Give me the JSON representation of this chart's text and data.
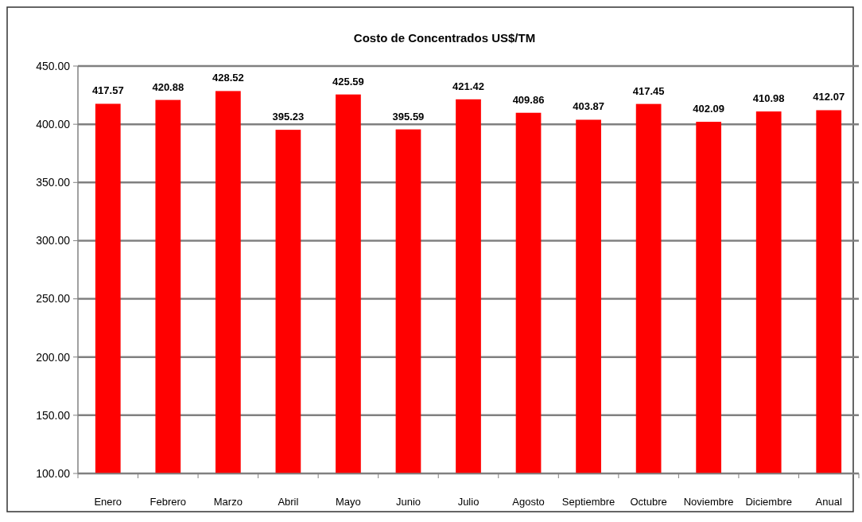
{
  "chart_data": {
    "type": "bar",
    "title": "Costo de Concentrados US$/TM",
    "categories": [
      "Enero",
      "Febrero",
      "Marzo",
      "Abril",
      "Mayo",
      "Junio",
      "Julio",
      "Agosto",
      "Septiembre",
      "Octubre",
      "Noviembre",
      "Diciembre",
      "Anual"
    ],
    "values": [
      417.57,
      420.88,
      428.52,
      395.23,
      425.59,
      395.59,
      421.42,
      409.86,
      403.87,
      417.45,
      402.09,
      410.98,
      412.07
    ],
    "color": "#ff0000",
    "ylim": [
      100,
      450
    ],
    "yticks": [
      {
        "value": 100,
        "label": "100.00"
      },
      {
        "value": 150,
        "label": "150.00"
      },
      {
        "value": 200,
        "label": "200.00"
      },
      {
        "value": 250,
        "label": "250.00"
      },
      {
        "value": 300,
        "label": "300.00"
      },
      {
        "value": 350,
        "label": "350.00"
      },
      {
        "value": 400,
        "label": "400.00"
      },
      {
        "value": 450,
        "label": "450.00"
      }
    ],
    "grid": "y",
    "data_labels": true
  }
}
